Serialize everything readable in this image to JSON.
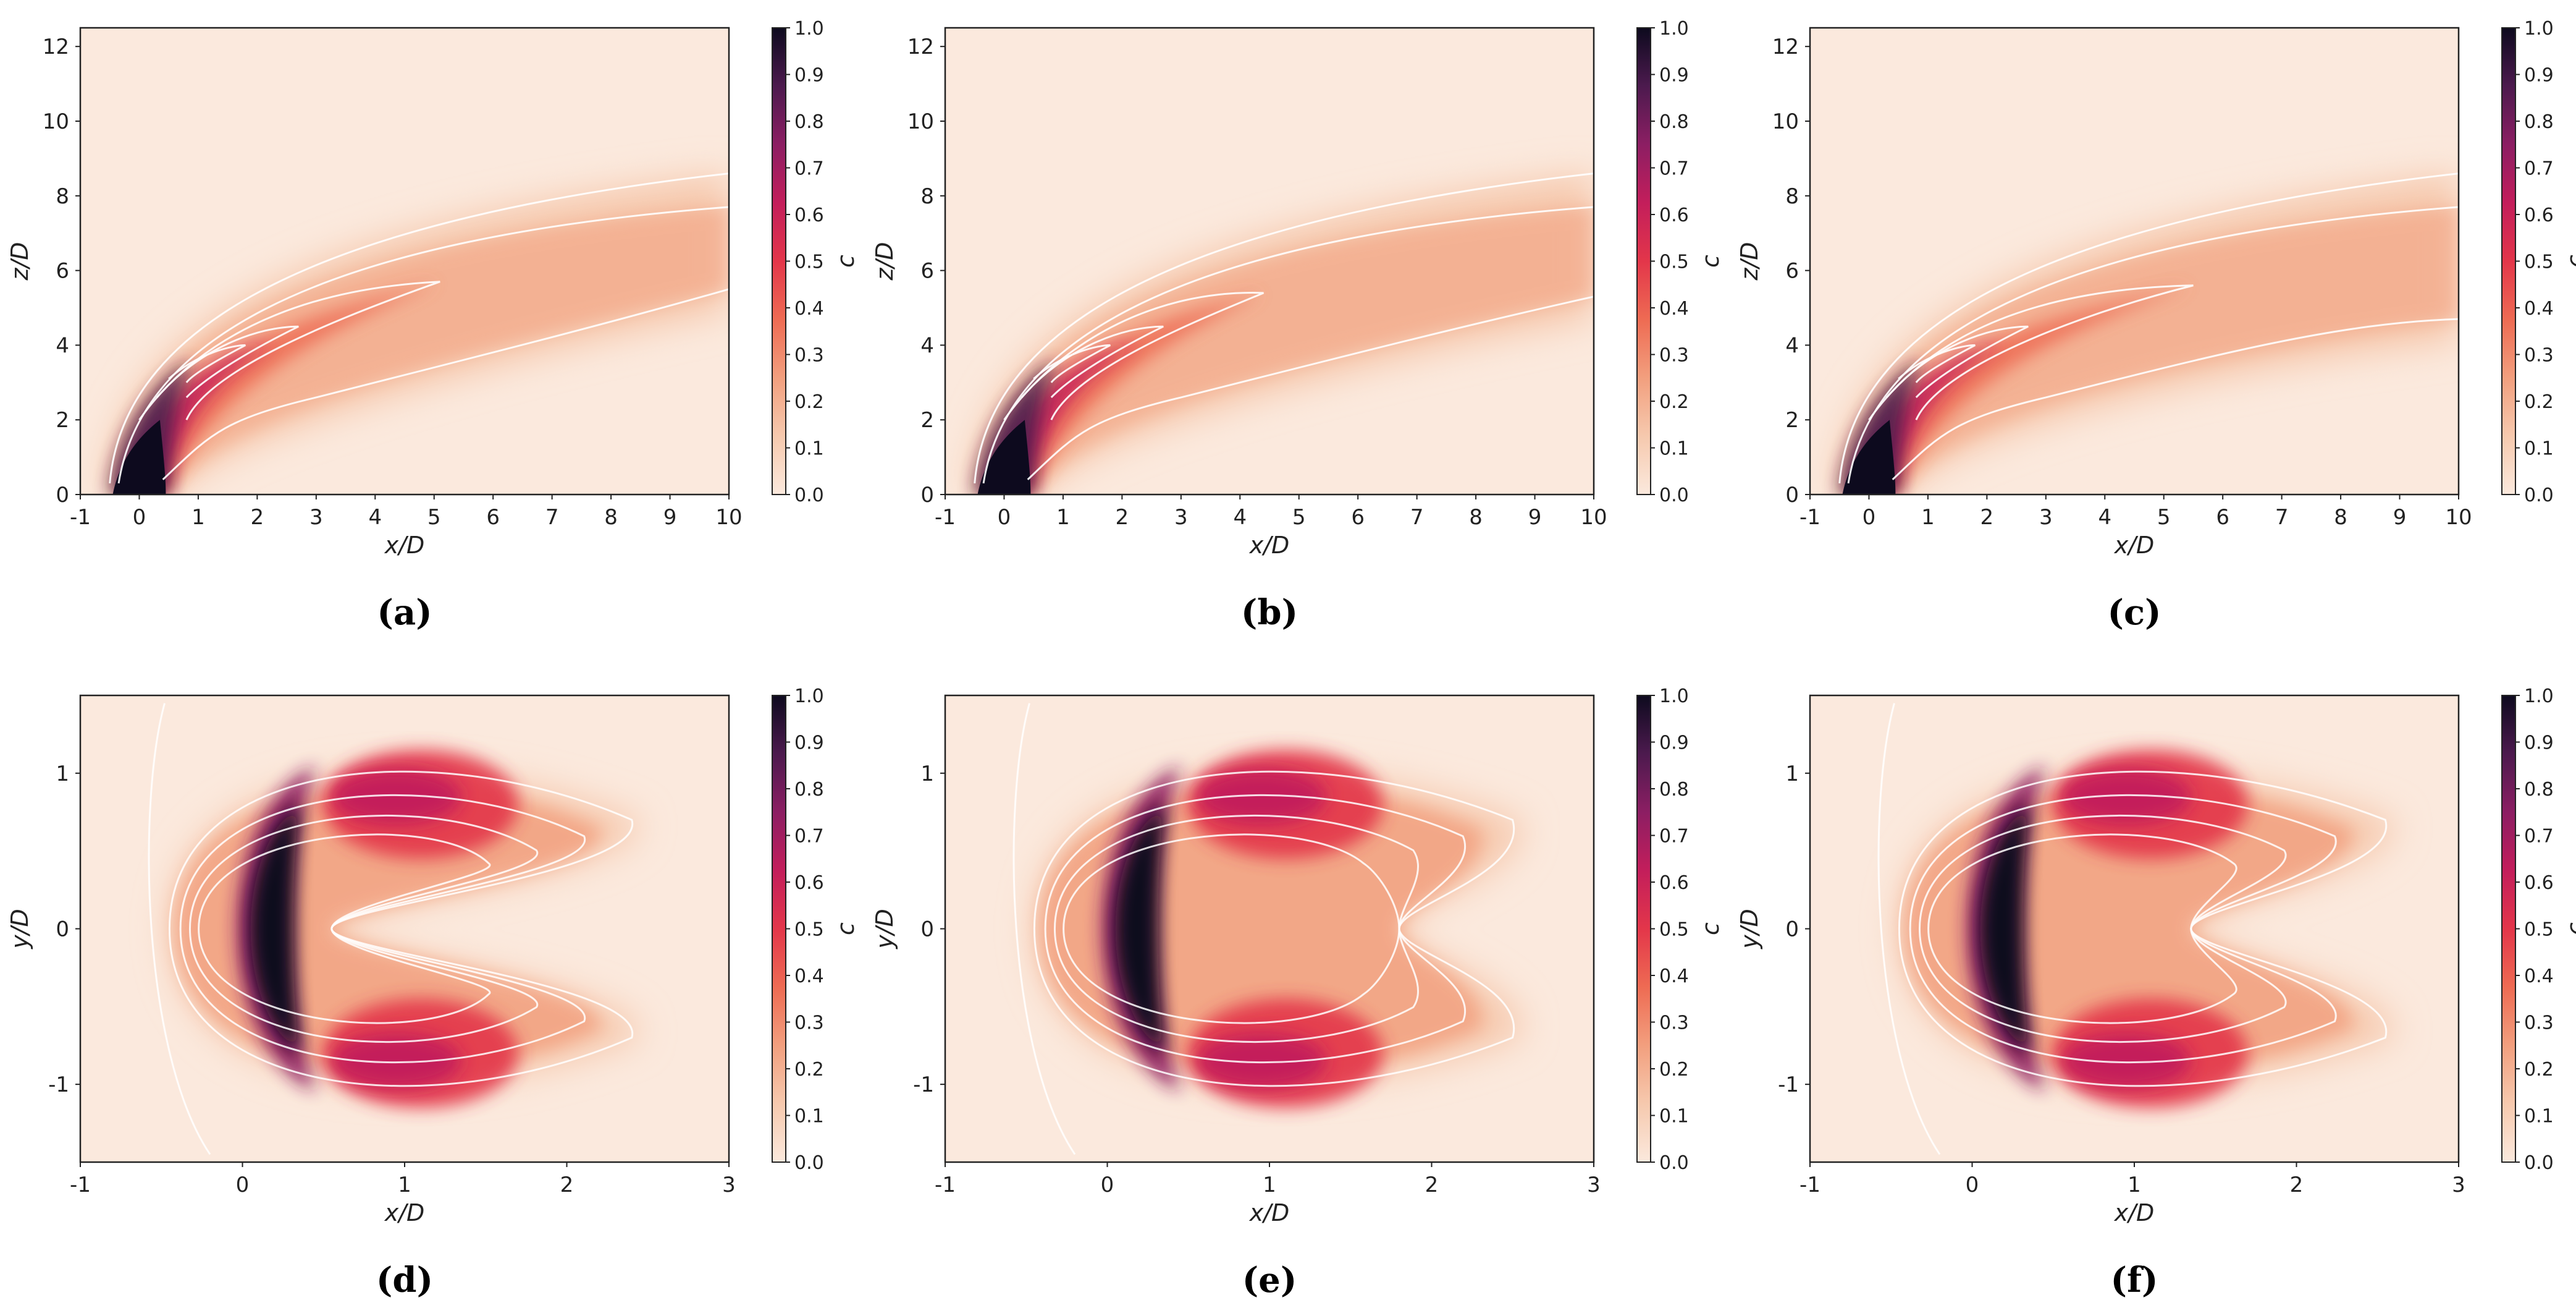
{
  "figure": {
    "panels": [
      {
        "caption": "(a)",
        "view": "side",
        "variant": "a"
      },
      {
        "caption": "(b)",
        "view": "side",
        "variant": "b"
      },
      {
        "caption": "(c)",
        "view": "side",
        "variant": "c"
      },
      {
        "caption": "(d)",
        "view": "top",
        "variant": "d"
      },
      {
        "caption": "(e)",
        "view": "top",
        "variant": "e"
      },
      {
        "caption": "(f)",
        "view": "top",
        "variant": "f"
      }
    ],
    "colorbar": {
      "label": "c",
      "ticks": [
        "0.0",
        "0.1",
        "0.2",
        "0.3",
        "0.4",
        "0.5",
        "0.6",
        "0.7",
        "0.8",
        "0.9",
        "1.0"
      ]
    },
    "side_axes": {
      "xlabel": "x/D",
      "ylabel": "z/D",
      "xticks": [
        "-1",
        "0",
        "1",
        "2",
        "3",
        "4",
        "5",
        "6",
        "7",
        "8",
        "9",
        "10"
      ],
      "yticks": [
        "0",
        "2",
        "4",
        "6",
        "8",
        "10",
        "12"
      ]
    },
    "top_axes": {
      "xlabel": "x/D",
      "ylabel": "y/D",
      "xticks": [
        "-1",
        "0",
        "1",
        "2",
        "3"
      ],
      "yticks": [
        "-1",
        "0",
        "1"
      ]
    },
    "colors": {
      "c0": "#fbe9dd",
      "c1": "#f6c9ae",
      "c2": "#f29f7e",
      "c3": "#ee6b53",
      "c4": "#e3364a",
      "c5": "#c31e5b",
      "c6": "#8c1e63",
      "c7": "#4c1a4e",
      "c8": "#0d0a1e",
      "contour": "#ffffff"
    }
  },
  "chart_data": [
    {
      "type": "heatmap",
      "panel": "a",
      "xlabel": "x/D",
      "ylabel": "z/D",
      "xlim": [
        -1,
        10
      ],
      "ylim": [
        0,
        12.5
      ],
      "colorbar_label": "c",
      "clim": [
        0.0,
        1.0
      ]
    },
    {
      "type": "heatmap",
      "panel": "b",
      "xlabel": "x/D",
      "ylabel": "z/D",
      "xlim": [
        -1,
        10
      ],
      "ylim": [
        0,
        12.5
      ],
      "colorbar_label": "c",
      "clim": [
        0.0,
        1.0
      ]
    },
    {
      "type": "heatmap",
      "panel": "c",
      "xlabel": "x/D",
      "ylabel": "z/D",
      "xlim": [
        -1,
        10
      ],
      "ylim": [
        0,
        12.5
      ],
      "colorbar_label": "c",
      "clim": [
        0.0,
        1.0
      ]
    },
    {
      "type": "heatmap",
      "panel": "d",
      "xlabel": "x/D",
      "ylabel": "y/D",
      "xlim": [
        -1,
        3
      ],
      "ylim": [
        -1.5,
        1.5
      ],
      "colorbar_label": "c",
      "clim": [
        0.0,
        1.0
      ]
    },
    {
      "type": "heatmap",
      "panel": "e",
      "xlabel": "x/D",
      "ylabel": "y/D",
      "xlim": [
        -1,
        3
      ],
      "ylim": [
        -1.5,
        1.5
      ],
      "colorbar_label": "c",
      "clim": [
        0.0,
        1.0
      ]
    },
    {
      "type": "heatmap",
      "panel": "f",
      "xlabel": "x/D",
      "ylabel": "y/D",
      "xlim": [
        -1,
        3
      ],
      "ylim": [
        -1.5,
        1.5
      ],
      "colorbar_label": "c",
      "clim": [
        0.0,
        1.0
      ]
    }
  ]
}
